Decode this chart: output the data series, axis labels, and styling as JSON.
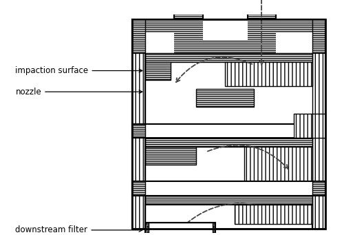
{
  "fig_width": 5.0,
  "fig_height": 3.41,
  "dpi": 100,
  "bg_color": "#ffffff",
  "line_color": "#000000",
  "arrow_color": "#444444",
  "filter_color": "#666666",
  "labels": {
    "impaction_surface": "impaction surface",
    "nozzle": "nozzle",
    "downstream_filter": "downstream filter"
  },
  "label_fontsize": 8.5
}
